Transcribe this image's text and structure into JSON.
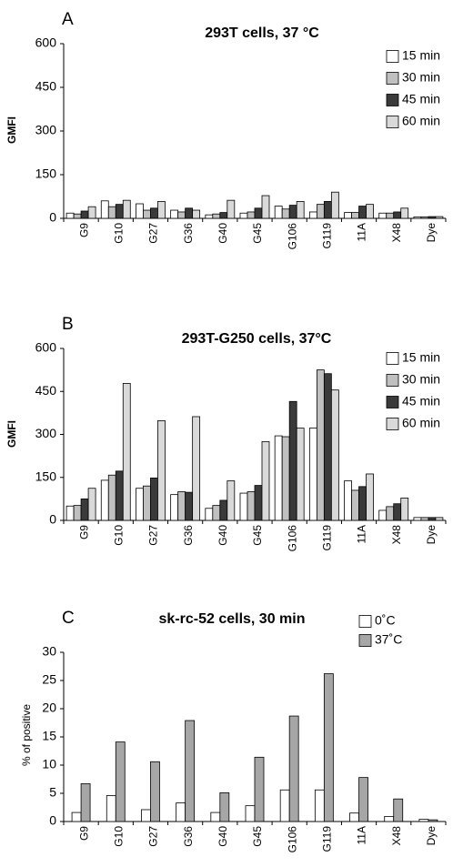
{
  "chart_data": [
    {
      "panel": "A",
      "type": "bar",
      "title": "293T cells, 37 °C",
      "ylabel": "GMFI",
      "xlabel": "",
      "ylim": [
        0,
        600
      ],
      "yticks": [
        "0",
        "150",
        "300",
        "450",
        "600"
      ],
      "categories": [
        "G9",
        "G10",
        "G27",
        "G36",
        "G40",
        "G45",
        "G106",
        "G119",
        "11A",
        "X48",
        "Dye"
      ],
      "legend_position": "top-right",
      "series": [
        {
          "name": "15 min",
          "color": "#ffffff",
          "values": [
            18,
            60,
            50,
            28,
            12,
            18,
            42,
            22,
            20,
            18,
            5
          ]
        },
        {
          "name": "30 min",
          "color": "#c0c0c0",
          "values": [
            15,
            40,
            28,
            22,
            15,
            22,
            32,
            48,
            20,
            18,
            5
          ]
        },
        {
          "name": "45 min",
          "color": "#3a3a3a",
          "values": [
            25,
            48,
            35,
            35,
            20,
            35,
            45,
            58,
            42,
            22,
            6
          ]
        },
        {
          "name": "60 min",
          "color": "#d9d9d9",
          "values": [
            40,
            62,
            58,
            28,
            62,
            78,
            58,
            90,
            48,
            35,
            6
          ]
        }
      ]
    },
    {
      "panel": "B",
      "type": "bar",
      "title": "293T-G250 cells, 37°C",
      "ylabel": "GMFI",
      "xlabel": "",
      "ylim": [
        0,
        600
      ],
      "yticks": [
        "0",
        "150",
        "300",
        "450",
        "600"
      ],
      "categories": [
        "G9",
        "G10",
        "G27",
        "G36",
        "G40",
        "G45",
        "G106",
        "G119",
        "11A",
        "X48",
        "Dye"
      ],
      "legend_position": "top-right",
      "series": [
        {
          "name": "15 min",
          "color": "#ffffff",
          "values": [
            50,
            140,
            112,
            90,
            42,
            95,
            295,
            322,
            138,
            35,
            10
          ]
        },
        {
          "name": "30 min",
          "color": "#c0c0c0",
          "values": [
            52,
            158,
            120,
            100,
            52,
            100,
            292,
            525,
            105,
            48,
            10
          ]
        },
        {
          "name": "45 min",
          "color": "#3a3a3a",
          "values": [
            75,
            172,
            148,
            98,
            70,
            122,
            415,
            512,
            118,
            58,
            10
          ]
        },
        {
          "name": "60 min",
          "color": "#d9d9d9",
          "values": [
            112,
            478,
            348,
            362,
            138,
            275,
            322,
            455,
            162,
            78,
            10
          ]
        }
      ]
    },
    {
      "panel": "C",
      "type": "bar",
      "title": "sk-rc-52 cells, 30 min",
      "ylabel": "% of positive",
      "xlabel": "",
      "ylim": [
        0,
        30
      ],
      "yticks": [
        "0",
        "5",
        "10",
        "15",
        "20",
        "25",
        "30"
      ],
      "categories": [
        "G9",
        "G10",
        "G27",
        "G36",
        "G40",
        "G45",
        "G106",
        "G119",
        "11A",
        "X48",
        "Dye"
      ],
      "legend_position": "top-right",
      "series": [
        {
          "name": "0˚C",
          "color": "#ffffff",
          "values": [
            1.6,
            4.6,
            2.1,
            3.3,
            1.6,
            2.8,
            5.6,
            5.6,
            1.5,
            0.9,
            0.4
          ]
        },
        {
          "name": "37˚C",
          "color": "#a6a6a6",
          "values": [
            6.7,
            14.1,
            10.6,
            17.9,
            5.1,
            11.4,
            18.7,
            26.2,
            7.8,
            4.0,
            0.3
          ]
        }
      ]
    }
  ]
}
